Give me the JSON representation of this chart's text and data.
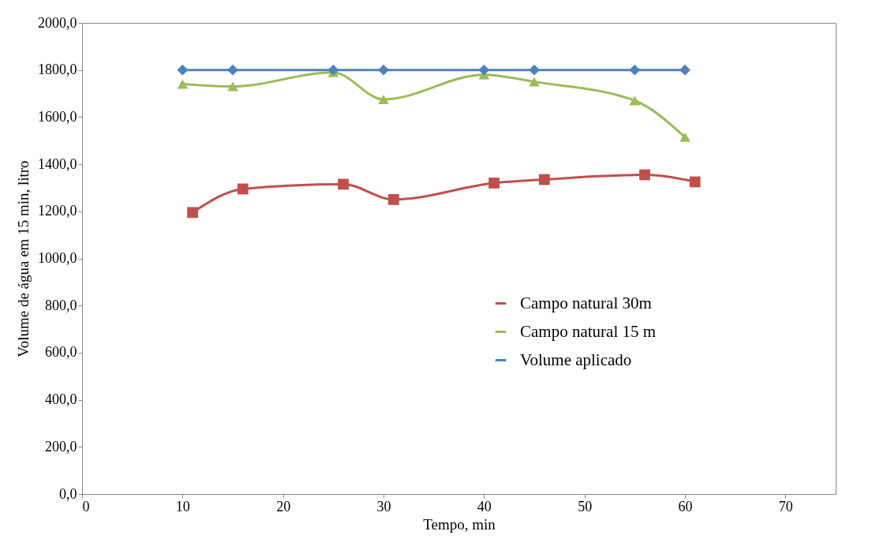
{
  "chart_data": {
    "type": "line",
    "xlabel": "Tempo, min",
    "ylabel": "Volume de  água em 15 min, litro",
    "xlim": [
      0,
      75
    ],
    "xticks": [
      0,
      10,
      20,
      30,
      40,
      50,
      60,
      70
    ],
    "ylim": [
      0,
      2000
    ],
    "yticks": [
      {
        "value": 0,
        "label": "0,0"
      },
      {
        "value": 200,
        "label": "200,0"
      },
      {
        "value": 400,
        "label": "400,0"
      },
      {
        "value": 600,
        "label": "600,0"
      },
      {
        "value": 800,
        "label": "800,0"
      },
      {
        "value": 1000,
        "label": "1000,0"
      },
      {
        "value": 1200,
        "label": "1200,0"
      },
      {
        "value": 1400,
        "label": "1400,0"
      },
      {
        "value": 1600,
        "label": "1600,0"
      },
      {
        "value": 1800,
        "label": "1800,0"
      },
      {
        "value": 2000,
        "label": "2000,0"
      }
    ],
    "grid": false,
    "legend": "right",
    "line_style": "solid",
    "series": [
      {
        "name": "Campo natural 30m",
        "color": "#c0504d",
        "marker": "square",
        "x": [
          11,
          16,
          26,
          31,
          41,
          46,
          56,
          61
        ],
        "values": [
          1195,
          1295,
          1315,
          1250,
          1320,
          1335,
          1355,
          1325
        ]
      },
      {
        "name": "Campo natural 15 m",
        "color": "#9bbb59",
        "marker": "triangle",
        "x": [
          10,
          15,
          25,
          30,
          40,
          45,
          55,
          60
        ],
        "values": [
          1740,
          1730,
          1790,
          1675,
          1780,
          1750,
          1670,
          1515
        ]
      },
      {
        "name": "Volume aplicado",
        "color": "#4f81bd",
        "marker": "diamond",
        "x": [
          10,
          15,
          25,
          30,
          40,
          45,
          55,
          60
        ],
        "values": [
          1800,
          1800,
          1800,
          1800,
          1800,
          1800,
          1800,
          1800
        ]
      }
    ]
  }
}
